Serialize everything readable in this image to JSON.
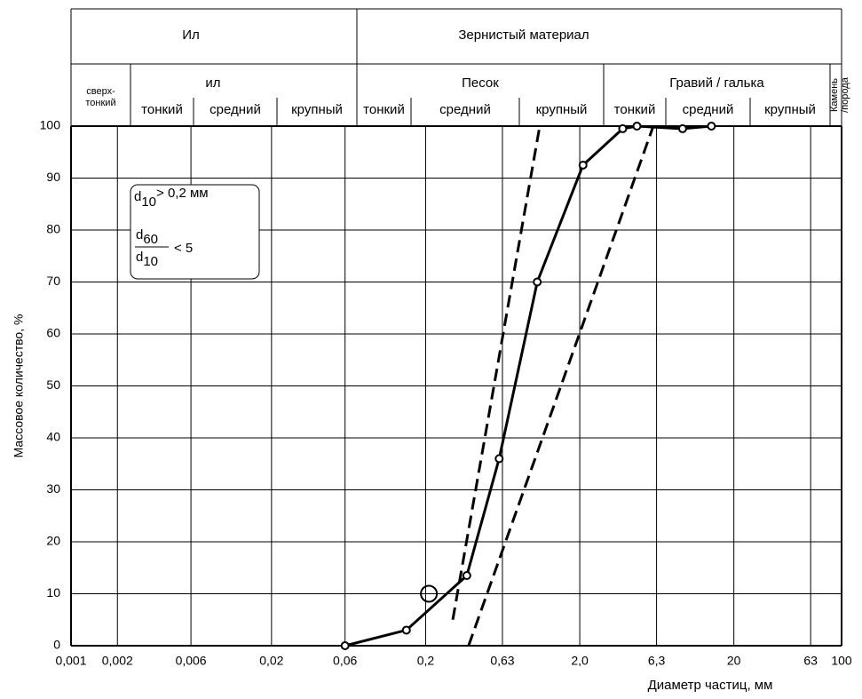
{
  "chart_data": {
    "type": "line",
    "header": {
      "top": [
        "Ил",
        "Зернистый материал"
      ],
      "groups": [
        {
          "label": [
            "сверх-",
            "тонкий"
          ],
          "subs": []
        },
        {
          "label": [
            "ил"
          ],
          "subs": [
            "тонкий",
            "средний",
            "крупный"
          ]
        },
        {
          "label": [
            "Песок"
          ],
          "subs": [
            "тонкий",
            "средний",
            "крупный"
          ]
        },
        {
          "label": [
            "Гравий / галька"
          ],
          "subs": [
            "тонкий",
            "средний",
            "крупный"
          ]
        },
        {
          "label": [
            "Камень",
            "/порода"
          ],
          "subs": []
        }
      ]
    },
    "ylabel": "Массовое количество, %",
    "xlabel": "Диаметр частиц, мм",
    "annotation": {
      "d": "d",
      "sub1": "10",
      "cond1": "> 0,2 мм",
      "num_sub": "60",
      "den_sub": "10",
      "cond2": "< 5"
    },
    "log_x": true,
    "xlim": [
      0.001,
      100
    ],
    "ylim": [
      0,
      100
    ],
    "xticks": [
      {
        "value": 0.001,
        "label": "0,001"
      },
      {
        "value": 0.002,
        "label": "0,002"
      },
      {
        "value": 0.006,
        "label": "0,006"
      },
      {
        "value": 0.02,
        "label": "0,02"
      },
      {
        "value": 0.06,
        "label": "0,06"
      },
      {
        "value": 0.2,
        "label": "0,2"
      },
      {
        "value": 0.63,
        "label": "0,63"
      },
      {
        "value": 2,
        "label": "2,0"
      },
      {
        "value": 6.3,
        "label": "6,3"
      },
      20,
      63,
      100
    ],
    "yticks": [
      0,
      10,
      20,
      30,
      40,
      50,
      60,
      70,
      80,
      90,
      100
    ],
    "grid": true,
    "series": [
      {
        "color": "#000000",
        "dashed": false,
        "markers": true,
        "x": [
          0.06,
          0.15,
          0.37,
          0.6,
          1.06,
          2.1,
          3.8,
          4.7,
          9.3,
          14.3
        ],
        "values": [
          0,
          3,
          13.5,
          36,
          70,
          92.5,
          99.5,
          100,
          99.5,
          100
        ]
      },
      {
        "color": "#000000",
        "dashed": true,
        "markers": false,
        "x": [
          0.3,
          1.1
        ],
        "values": [
          5,
          100
        ]
      },
      {
        "color": "#000000",
        "dashed": true,
        "markers": false,
        "x": [
          0.38,
          6.0
        ],
        "values": [
          0,
          100
        ]
      }
    ],
    "highlight": {
      "x": 0.21,
      "y": 10
    }
  }
}
